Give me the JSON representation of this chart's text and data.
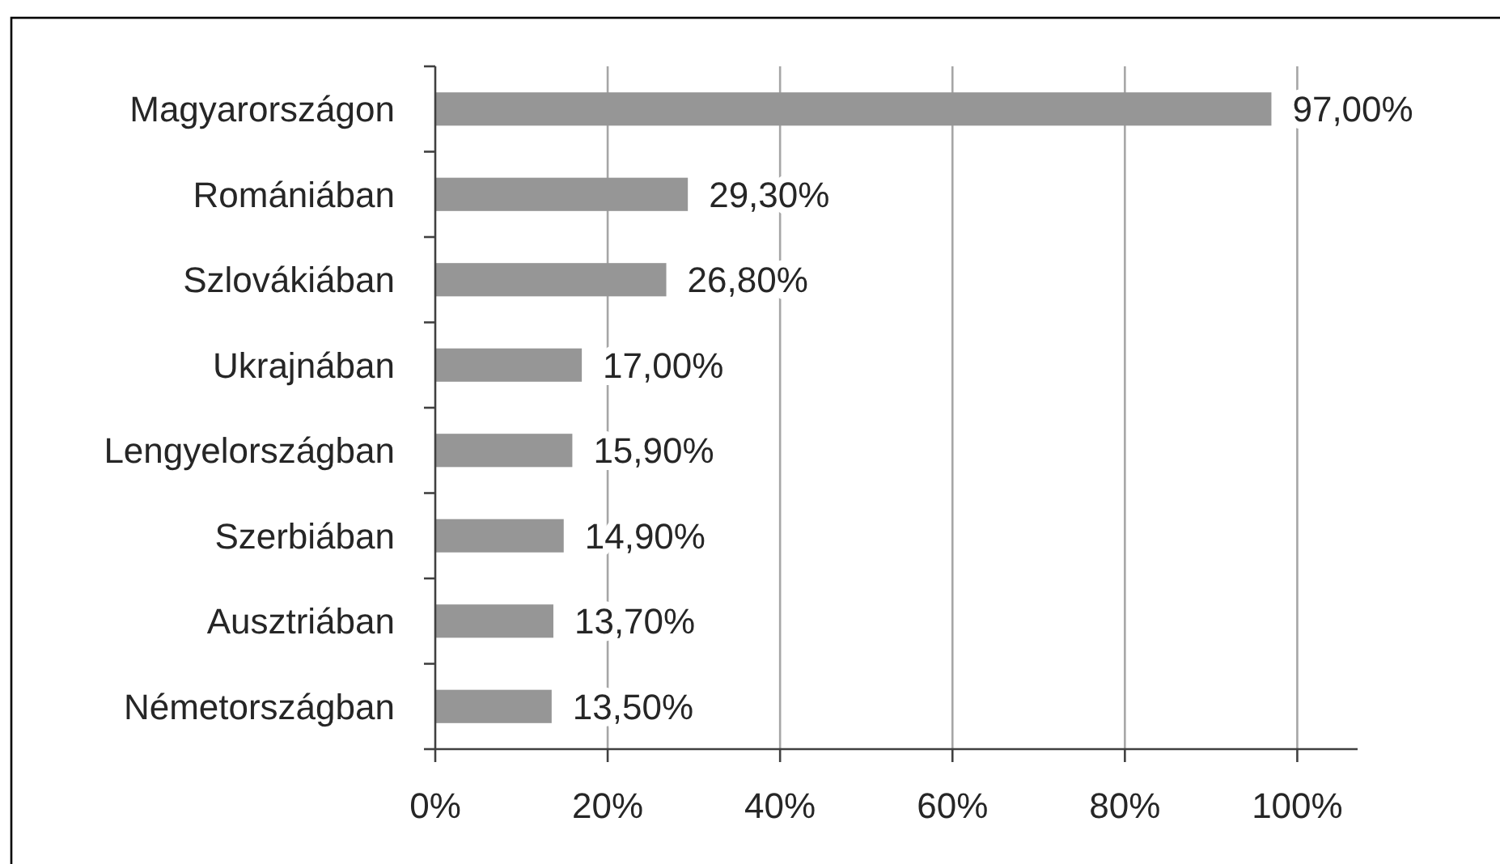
{
  "chart_data": {
    "type": "bar",
    "orientation": "horizontal",
    "categories": [
      "Magyarországon",
      "Romániában",
      "Szlovákiában",
      "Ukrajnában",
      "Lengyelországban",
      "Szerbiában",
      "Ausztriában",
      "Németországban"
    ],
    "values": [
      97.0,
      29.3,
      26.8,
      17.0,
      15.9,
      14.9,
      13.7,
      13.5
    ],
    "color": "#969696",
    "value_labels": [
      "97,00%",
      "29,30%",
      "26,80%",
      "17,00%",
      "15,90%",
      "14,90%",
      "13,70%",
      "13,50%"
    ],
    "xlim": [
      0,
      107
    ],
    "xticks": [
      {
        "value": 0,
        "label": "0%"
      },
      {
        "value": 20,
        "label": "20%"
      },
      {
        "value": 40,
        "label": "40%"
      },
      {
        "value": 60,
        "label": "60%"
      },
      {
        "value": 80,
        "label": "80%"
      },
      {
        "value": 100,
        "label": "100%"
      }
    ],
    "grid": "x"
  }
}
